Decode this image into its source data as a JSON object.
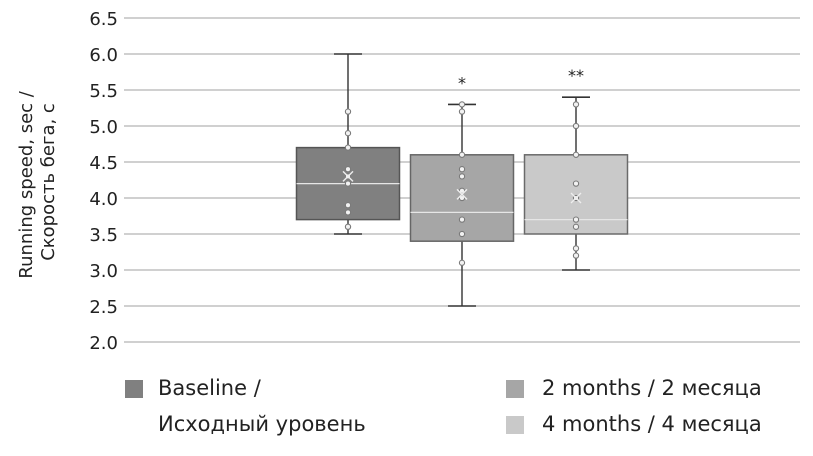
{
  "chart_data": {
    "type": "box",
    "ylabel_lines": [
      "Running speed, sec /",
      "Скорость бега, с"
    ],
    "ylim": [
      2.0,
      6.5
    ],
    "yticks": [
      "6.5",
      "6.0",
      "5.5",
      "5.0",
      "4.5",
      "4.0",
      "3.5",
      "3.0",
      "2.5",
      "2.0"
    ],
    "ytick_values": [
      6.5,
      6.0,
      5.5,
      5.0,
      4.5,
      4.0,
      3.5,
      3.0,
      2.5,
      2.0
    ],
    "grid": true,
    "series": [
      {
        "name_lines": [
          "Baseline /",
          "Исходный уровень"
        ],
        "color": "#808080",
        "min": 3.5,
        "q1": 3.7,
        "median": 4.2,
        "q3": 4.7,
        "max": 6.0,
        "mean": 4.3,
        "points": [
          5.2,
          4.9,
          4.7,
          4.4,
          4.3,
          4.2,
          3.9,
          3.8,
          3.6,
          3.6
        ],
        "significance": ""
      },
      {
        "name_lines": [
          "2 months / 2 месяца"
        ],
        "color": "#a6a6a6",
        "min": 2.5,
        "q1": 3.4,
        "median": 3.8,
        "q3": 4.6,
        "max": 5.3,
        "mean": 4.05,
        "points": [
          5.3,
          5.2,
          4.6,
          4.4,
          4.3,
          4.1,
          4.0,
          3.7,
          3.5,
          3.1
        ],
        "significance": "*"
      },
      {
        "name_lines": [
          "4 months / 4 месяца"
        ],
        "color": "#c9c9c9",
        "min": 3.0,
        "q1": 3.5,
        "median": 3.7,
        "q3": 4.6,
        "max": 5.4,
        "mean": 4.0,
        "points": [
          5.3,
          5.0,
          4.6,
          4.2,
          4.0,
          3.7,
          3.6,
          3.3,
          3.2
        ],
        "significance": "**"
      }
    ]
  }
}
